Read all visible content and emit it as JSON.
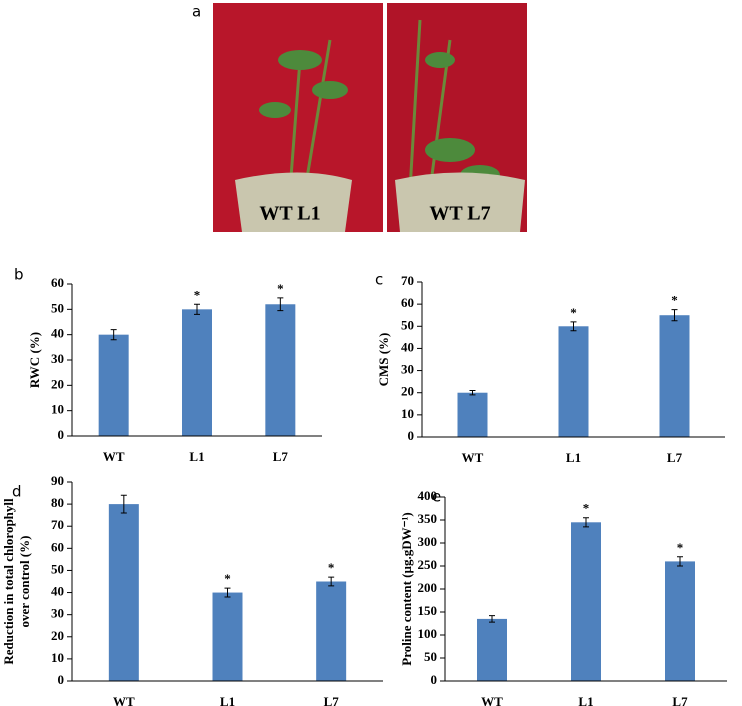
{
  "photo": {
    "label": "a",
    "captions": [
      "WT  L1",
      "WT  L7"
    ]
  },
  "chart_data": [
    {
      "type": "bar",
      "panel": "b",
      "ylabel": [
        "RWC (%)"
      ],
      "categories": [
        "WT",
        "L1",
        "L7"
      ],
      "values": [
        40,
        50,
        52
      ],
      "errors": [
        2,
        2,
        2.5
      ],
      "significance": [
        null,
        "*",
        "*"
      ],
      "color": "#4f81bd",
      "ylim": [
        0,
        60
      ],
      "yticks": [
        0,
        10,
        20,
        30,
        40,
        50,
        60
      ]
    },
    {
      "type": "bar",
      "panel": "c",
      "ylabel": [
        "CMS (%)"
      ],
      "categories": [
        "WT",
        "L1",
        "L7"
      ],
      "values": [
        20,
        50,
        55
      ],
      "errors": [
        1,
        2,
        2.5
      ],
      "significance": [
        null,
        "*",
        "*"
      ],
      "color": "#4f81bd",
      "ylim": [
        0,
        70
      ],
      "yticks": [
        0,
        10,
        20,
        30,
        40,
        50,
        60,
        70
      ]
    },
    {
      "type": "bar",
      "panel": "d",
      "ylabel": [
        "Reduction in total chlorophyll",
        "over control (%)"
      ],
      "categories": [
        "WT",
        "L1",
        "L7"
      ],
      "values": [
        80,
        40,
        45
      ],
      "errors": [
        4,
        2,
        2
      ],
      "significance": [
        null,
        "*",
        "*"
      ],
      "color": "#4f81bd",
      "ylim": [
        0,
        90
      ],
      "yticks": [
        0,
        10,
        20,
        30,
        40,
        50,
        60,
        70,
        80,
        90
      ]
    },
    {
      "type": "bar",
      "panel": "e",
      "ylabel": [
        "Proline content (µg.gDW⁻¹)"
      ],
      "categories": [
        "WT",
        "L1",
        "L7"
      ],
      "values": [
        135,
        345,
        260
      ],
      "errors": [
        7,
        10,
        10
      ],
      "significance": [
        null,
        "*",
        "*"
      ],
      "color": "#4f81bd",
      "ylim": [
        0,
        400
      ],
      "yticks": [
        0,
        50,
        100,
        150,
        200,
        250,
        300,
        350,
        400
      ]
    }
  ]
}
